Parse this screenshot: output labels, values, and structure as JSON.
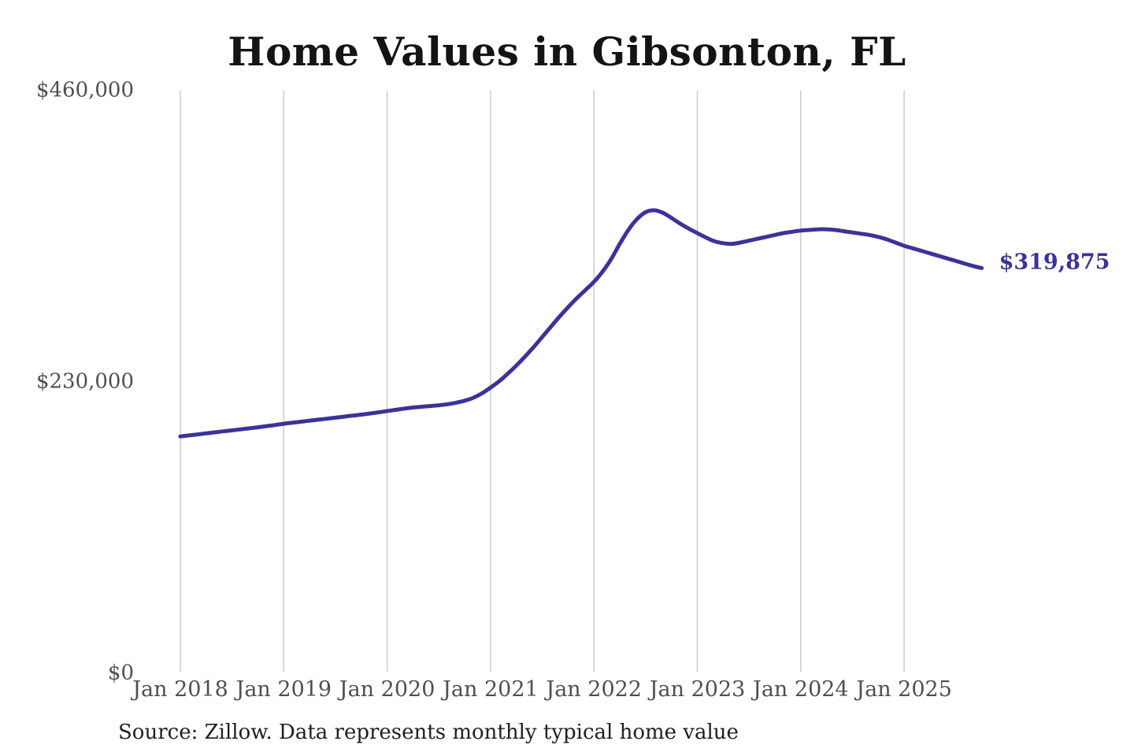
{
  "chart_data": {
    "type": "line",
    "title": "Home Values in Gibsonton, FL",
    "source": "Source: Zillow. Data represents monthly typical home value",
    "end_label": "$319,875",
    "latest_value": 319875,
    "xlabel": "",
    "ylabel": "",
    "ylim": [
      0,
      460000
    ],
    "grid": "vertical-only",
    "legend": "none",
    "y_ticks": [
      {
        "value": 0,
        "label": "$0"
      },
      {
        "value": 230000,
        "label": "$230,000"
      },
      {
        "value": 460000,
        "label": "$460,000"
      }
    ],
    "x_ticks": [
      "Jan 2018",
      "Jan 2019",
      "Jan 2020",
      "Jan 2021",
      "Jan 2022",
      "Jan 2023",
      "Jan 2024",
      "Jan 2025"
    ],
    "months": [
      "2018-01",
      "2018-02",
      "2018-03",
      "2018-04",
      "2018-05",
      "2018-06",
      "2018-07",
      "2018-08",
      "2018-09",
      "2018-10",
      "2018-11",
      "2018-12",
      "2019-01",
      "2019-02",
      "2019-03",
      "2019-04",
      "2019-05",
      "2019-06",
      "2019-07",
      "2019-08",
      "2019-09",
      "2019-10",
      "2019-11",
      "2019-12",
      "2020-01",
      "2020-02",
      "2020-03",
      "2020-04",
      "2020-05",
      "2020-06",
      "2020-07",
      "2020-08",
      "2020-09",
      "2020-10",
      "2020-11",
      "2020-12",
      "2021-01",
      "2021-02",
      "2021-03",
      "2021-04",
      "2021-05",
      "2021-06",
      "2021-07",
      "2021-08",
      "2021-09",
      "2021-10",
      "2021-11",
      "2021-12",
      "2022-01",
      "2022-02",
      "2022-03",
      "2022-04",
      "2022-05",
      "2022-06",
      "2022-07",
      "2022-08",
      "2022-09",
      "2022-10",
      "2022-11",
      "2022-12",
      "2023-01",
      "2023-02",
      "2023-03",
      "2023-04",
      "2023-05",
      "2023-06",
      "2023-07",
      "2023-08",
      "2023-09",
      "2023-10",
      "2023-11",
      "2023-12",
      "2024-01",
      "2024-02",
      "2024-03",
      "2024-04",
      "2024-05",
      "2024-06",
      "2024-07",
      "2024-08",
      "2024-09",
      "2024-10",
      "2024-11",
      "2024-12",
      "2025-01",
      "2025-02",
      "2025-03",
      "2025-04",
      "2025-05",
      "2025-06",
      "2025-07",
      "2025-08",
      "2025-09",
      "2025-10"
    ],
    "values": [
      187000,
      187800,
      188600,
      189400,
      190200,
      191000,
      191800,
      192600,
      193400,
      194200,
      195100,
      196000,
      197000,
      197800,
      198600,
      199400,
      200200,
      201000,
      201800,
      202600,
      203400,
      204200,
      205100,
      206000,
      207000,
      208000,
      209000,
      209800,
      210400,
      211000,
      211600,
      212400,
      213600,
      215200,
      217500,
      221000,
      225500,
      230500,
      236500,
      243000,
      250000,
      257500,
      265500,
      273500,
      281500,
      289000,
      296000,
      302500,
      309000,
      317000,
      327000,
      339000,
      350000,
      358500,
      364000,
      365500,
      363500,
      359500,
      355000,
      351000,
      347500,
      344000,
      341000,
      339500,
      339000,
      340000,
      341500,
      343000,
      344500,
      346000,
      347500,
      348500,
      349500,
      350000,
      350500,
      350500,
      350000,
      349000,
      348000,
      347000,
      346000,
      344500,
      342500,
      340000,
      337500,
      335500,
      333500,
      331500,
      329500,
      327500,
      325500,
      323500,
      321500,
      319875
    ],
    "colors": {
      "line": "#3b3399",
      "grid": "#cccccc",
      "axis_text": "#4f4f4f",
      "title_text": "#141414",
      "source_text": "#1f1f1f"
    }
  }
}
